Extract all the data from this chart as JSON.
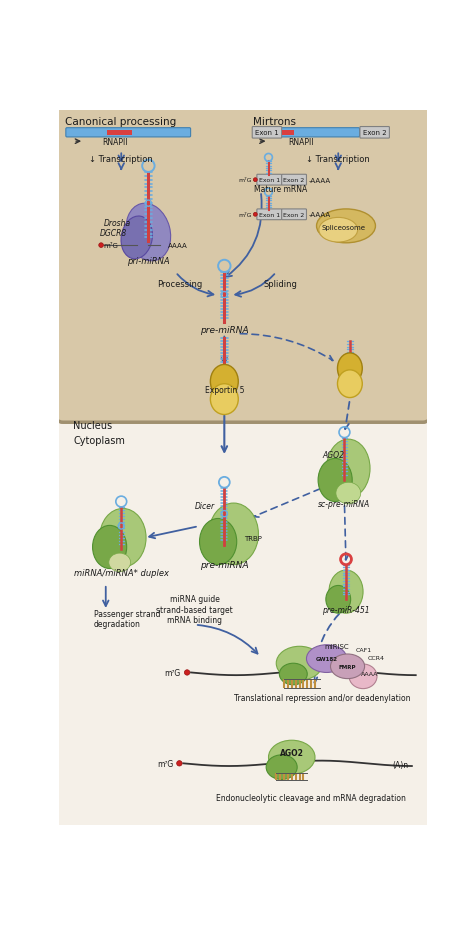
{
  "background_color": "#f0ebe0",
  "colors": {
    "blue_bar": "#6aade0",
    "red_bar": "#d94040",
    "stem_blue": "#6aade0",
    "stem_red": "#d04040",
    "green_light": "#a8c878",
    "green_mid": "#78a848",
    "green_dark": "#509030",
    "green_pale": "#c8e0a0",
    "yellow_blob": "#d4b030",
    "yellow_light": "#e8cc60",
    "drosha_purple": "#9088c0",
    "dgcr8_purple": "#7870b0",
    "spliceosome_tan": "#d4b860",
    "spliceosome_light": "#e8d080",
    "arrow_dark": "#4060a0",
    "arrow_gray": "#505050",
    "text_dark": "#1a1a1a",
    "nucleus_fill": "#d8c8a8",
    "nucleus_border": "#a09070",
    "red_dot": "#cc2020",
    "exon_box": "#c8c8c8",
    "exon_border": "#808080",
    "gw182_purple": "#b090c8",
    "fmrp_mauve": "#c8a0b8",
    "pink_right": "#e8b8c8",
    "teal_small": "#80c0b8",
    "beige_small": "#d8b890",
    "white": "#ffffff"
  },
  "labels": {
    "canonical": "Canonical processing",
    "mirtron": "Mirtrons",
    "rnapii": "RNAPII",
    "transcription": "Transcription",
    "processing": "Processing",
    "splicing": "Spliding",
    "drosha": "Drosha",
    "dgcr8": "DGCR8",
    "m7g": "m⁷G",
    "exon1": "Exon 1",
    "exon2": "Exon 2",
    "mature_mrna": "Mature mRNA",
    "spliceosome": "Spliceosome",
    "exportin5": "Exportin 5",
    "nucleus_label": "Nucleus",
    "cytoplasm_label": "Cytoplasm",
    "dicer": "Dicer",
    "trbp": "TRBP",
    "pre_mirna": "pre-miRNA",
    "ago2_label": "AGO2",
    "sc_pre_mirna": "sc-pre-miRNA",
    "pre_mir451": "pre-miR-451",
    "mirna_duplex": "miRNA/miRNA* duplex",
    "passenger_strand": "Passenger strand\ndegradation",
    "mirna_guide": "miRNA guide\nstrand-based target\nmRNA binding",
    "miRISC": "miRISC",
    "gw182": "GW182",
    "fmrp": "FMRP",
    "caf1": "CAF1",
    "ccr4": "CCR4",
    "translational": "Translational repression and/or deadenylation",
    "endonucleolytic": "Endonucleolytic cleavage and mRNA degradation",
    "ago2_bottom": "AGO2",
    "an": "(A)n",
    "aaaa": "AAAA"
  }
}
